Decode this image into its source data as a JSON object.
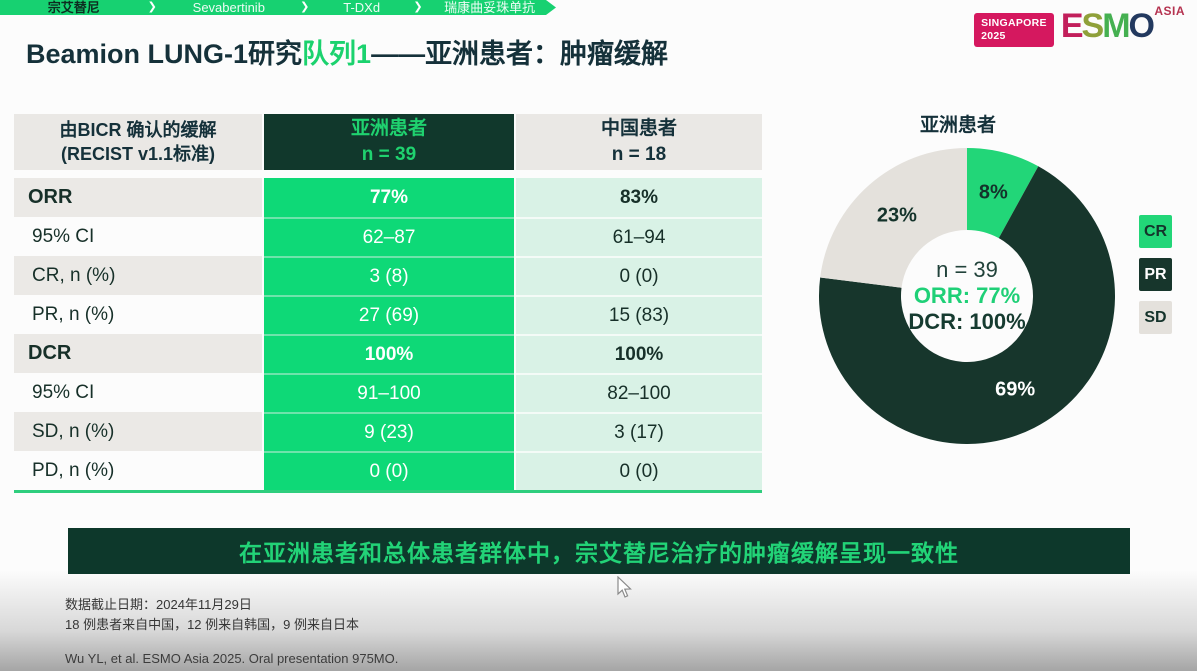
{
  "top_bar": {
    "tabs": [
      {
        "label": "宗艾替尼",
        "active": true
      },
      {
        "label": "Sevabertinib",
        "active": false
      },
      {
        "label": "T-DXd",
        "active": false
      },
      {
        "label": "瑞康曲妥珠单抗",
        "active": false
      }
    ]
  },
  "logo": {
    "badge_line1": "SINGAPORE",
    "badge_line2": "2025",
    "letters": [
      {
        "ch": "E",
        "color": "#c21f5b"
      },
      {
        "ch": "S",
        "color": "#8fa03a"
      },
      {
        "ch": "M",
        "color": "#45b051"
      },
      {
        "ch": "O",
        "color": "#23395f"
      }
    ],
    "region": "ASIA"
  },
  "title": {
    "part1": "Beamion LUNG-1研究",
    "highlight": "队列1",
    "part2": "——亚洲患者：肿瘤缓解"
  },
  "table": {
    "header": {
      "col1_line1": "由BICR 确认的缓解",
      "col1_line2": "(RECIST v1.1标准)",
      "col2_line1": "亚洲患者",
      "col2_line2": "n = 39",
      "col3_line1": "中国患者",
      "col3_line2": "n = 18"
    },
    "rows": [
      {
        "label": "ORR",
        "asian": "77%",
        "chinese": "83%"
      },
      {
        "label": "95% CI",
        "asian": "62–87",
        "chinese": "61–94"
      },
      {
        "label": "CR, n (%)",
        "asian": "3 (8)",
        "chinese": "0 (0)"
      },
      {
        "label": "PR, n (%)",
        "asian": "27 (69)",
        "chinese": "15 (83)"
      },
      {
        "label": "DCR",
        "asian": "100%",
        "chinese": "100%"
      },
      {
        "label": "95% CI",
        "asian": "91–100",
        "chinese": "82–100"
      },
      {
        "label": "SD, n (%)",
        "asian": "9 (23)",
        "chinese": "3 (17)"
      },
      {
        "label": "PD, n (%)",
        "asian": "0 (0)",
        "chinese": "0 (0)"
      }
    ]
  },
  "chart_data": {
    "type": "pie",
    "donut": true,
    "title": "亚洲患者",
    "start_angle_deg": 0,
    "direction": "clockwise",
    "slices": [
      {
        "label": "CR",
        "value": 8,
        "color": "#22d678",
        "label_color": "#14332b"
      },
      {
        "label": "PR",
        "value": 69,
        "color": "#17362c",
        "label_color": "#ffffff"
      },
      {
        "label": "SD",
        "value": 23,
        "color": "#e4e1dc",
        "label_color": "#14332b"
      }
    ],
    "center": {
      "line1": "n = 39",
      "line2": "ORR: 77%",
      "line3": "DCR: 100%"
    },
    "legend": [
      {
        "label": "CR",
        "color": "#22d678",
        "text_color": "#14332b"
      },
      {
        "label": "PR",
        "color": "#17362c",
        "text_color": "#ffffff"
      },
      {
        "label": "SD",
        "color": "#e4e1dc",
        "text_color": "#14332b"
      }
    ],
    "legend_position": "right"
  },
  "banner": {
    "text": "在亚洲患者和总体患者群体中，宗艾替尼治疗的肿瘤缓解呈现一致性"
  },
  "footnotes": {
    "line1": "数据截止日期：2024年11月29日",
    "line2": "18 例患者来自中国，12 例来自韩国，9 例来自日本",
    "citation": "Wu YL, et al. ESMO Asia 2025. Oral presentation 975MO."
  },
  "colors": {
    "accent_green": "#0ed977",
    "dark_green": "#11382c",
    "banner_bg": "#0d382b",
    "banner_text": "#22d377",
    "mint": "#d9f2e6",
    "light_gray_cell": "#eae8e5",
    "badge_pink": "#d5185f",
    "title_dark": "#15313a"
  }
}
